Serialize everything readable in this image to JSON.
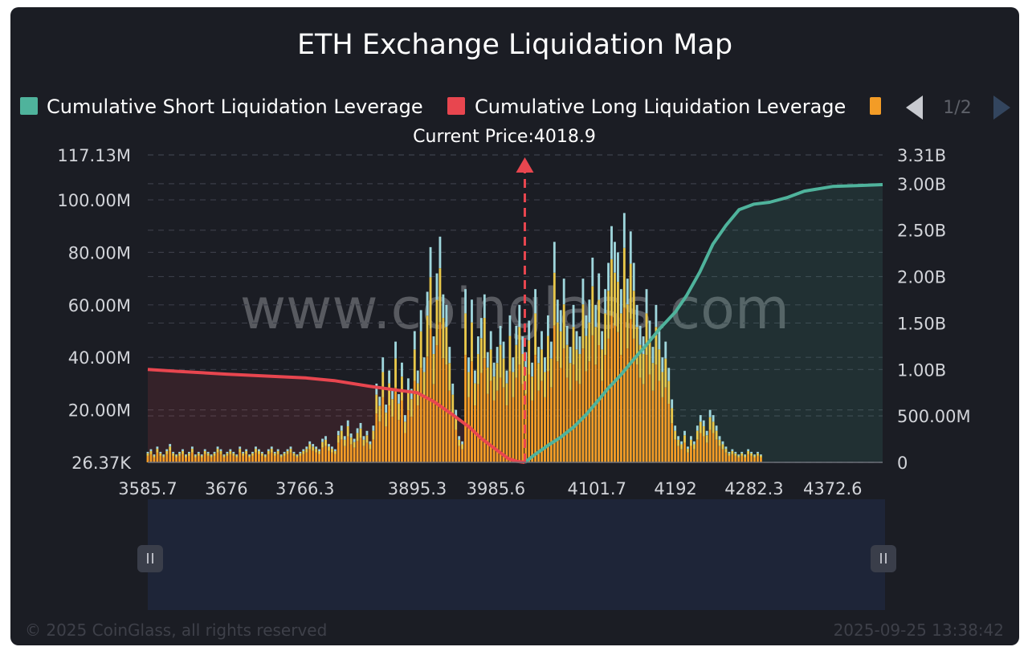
{
  "title": "ETH Exchange Liquidation Map",
  "legend": {
    "items": [
      {
        "label": "Cumulative Short Liquidation Leverage",
        "color": "#4fb39c"
      },
      {
        "label": "Cumulative Long Liquidation Leverage",
        "color": "#e8464f"
      },
      {
        "label": "",
        "color": "#f39c26"
      }
    ],
    "page": "1/2",
    "prev_icon": "triangle-left-icon",
    "next_icon": "triangle-right-icon"
  },
  "current_price_label": "Current Price:4018.9",
  "watermark": "www.coinglass.com",
  "footer": {
    "copyright": "© 2025 CoinGlass, all rights reserved",
    "timestamp": "2025-09-25 13:38:42"
  },
  "colors": {
    "short_line": "#4fb39c",
    "long_line": "#e8464f",
    "bar_orange": "#f39c26",
    "bar_yellow": "#e9c84a",
    "bar_cyan": "#9fd6dc",
    "price_marker": "#e8464f"
  },
  "chart_data": {
    "type": "bar",
    "title": "ETH Exchange Liquidation Map",
    "x_tick_labels": [
      "3585.7",
      "3676",
      "3766.3",
      "3895.3",
      "3985.6",
      "4101.7",
      "4192",
      "4282.3",
      "4372.6"
    ],
    "y_left_tick_labels": [
      "26.37K",
      "20.00M",
      "40.00M",
      "60.00M",
      "80.00M",
      "100.00M",
      "117.13M"
    ],
    "y_left_values": [
      0,
      20000000,
      40000000,
      60000000,
      80000000,
      100000000,
      117130000
    ],
    "y_right_tick_labels": [
      "0",
      "500.00M",
      "1.00B",
      "1.50B",
      "2.00B",
      "2.50B",
      "3.00B",
      "3.31B"
    ],
    "y_right_values": [
      0,
      500000000,
      1000000000,
      1500000000,
      2000000000,
      2500000000,
      3000000000,
      3310000000
    ],
    "ylim_left": [
      0,
      117130000
    ],
    "ylim_right": [
      0,
      3310000000
    ],
    "xlim": [
      3585.7,
      4430
    ],
    "current_price": 4018.9,
    "grid": "horizontal dashed",
    "legend_position": "top",
    "series": [
      {
        "name": "Cumulative Long Liquidation Leverage",
        "type": "area-line",
        "axis": "right",
        "x": [
          3585.7,
          3620,
          3676,
          3720,
          3766.3,
          3800,
          3840,
          3870,
          3895.3,
          3915,
          3935,
          3955,
          3970,
          3985.6,
          4000,
          4010,
          4018.9
        ],
        "values": [
          1000000000,
          980000000,
          950000000,
          930000000,
          910000000,
          880000000,
          820000000,
          780000000,
          750000000,
          650000000,
          520000000,
          380000000,
          250000000,
          140000000,
          40000000,
          10000000,
          0
        ]
      },
      {
        "name": "Cumulative Short Liquidation Leverage",
        "type": "area-line",
        "axis": "right",
        "x": [
          4018.9,
          4030,
          4045,
          4060,
          4075,
          4090,
          4101.7,
          4115,
          4130,
          4145,
          4160,
          4175,
          4192,
          4205,
          4220,
          4235,
          4250,
          4265,
          4282.3,
          4300,
          4320,
          4340,
          4372.6,
          4400,
          4430
        ],
        "values": [
          0,
          80000000,
          180000000,
          270000000,
          380000000,
          520000000,
          650000000,
          800000000,
          950000000,
          1120000000,
          1280000000,
          1450000000,
          1620000000,
          1800000000,
          2050000000,
          2350000000,
          2550000000,
          2720000000,
          2780000000,
          2800000000,
          2850000000,
          2920000000,
          2970000000,
          2980000000,
          2990000000
        ]
      },
      {
        "name": "",
        "type": "bar",
        "axis": "left",
        "x_start": 3585.7,
        "x_step": 3.65,
        "values": [
          4,
          5,
          3,
          6,
          4,
          3,
          5,
          7,
          4,
          3,
          4,
          5,
          3,
          4,
          6,
          3,
          4,
          3,
          5,
          4,
          3,
          4,
          6,
          5,
          3,
          4,
          5,
          4,
          3,
          6,
          4,
          5,
          3,
          4,
          6,
          5,
          4,
          3,
          5,
          6,
          4,
          5,
          3,
          4,
          5,
          6,
          4,
          3,
          4,
          5,
          6,
          8,
          7,
          6,
          5,
          9,
          10,
          7,
          6,
          5,
          12,
          14,
          10,
          16,
          11,
          9,
          13,
          15,
          10,
          12,
          8,
          14,
          30,
          25,
          40,
          22,
          35,
          28,
          46,
          26,
          38,
          18,
          32,
          28,
          50,
          35,
          58,
          40,
          65,
          82,
          48,
          72,
          86,
          64,
          60,
          44,
          30,
          20,
          10,
          8,
          66,
          40,
          62,
          35,
          48,
          55,
          64,
          42,
          50,
          38,
          44,
          52,
          46,
          35,
          56,
          40,
          52,
          60,
          48,
          42,
          54,
          38,
          66,
          44,
          50,
          40,
          56,
          46,
          84,
          62,
          58,
          70,
          52,
          44,
          60,
          50,
          48,
          70,
          56,
          62,
          78,
          60,
          72,
          50,
          66,
          76,
          90,
          84,
          80,
          66,
          95,
          70,
          88,
          76,
          60,
          52,
          48,
          66,
          54,
          44,
          60,
          50,
          40,
          46,
          36,
          24,
          14,
          10,
          8,
          12,
          6,
          10,
          8,
          14,
          18,
          16,
          12,
          20,
          18,
          14,
          10,
          8,
          6,
          4,
          5,
          4,
          3,
          4,
          3,
          5,
          4,
          3,
          4,
          3
        ],
        "unit": "millions"
      }
    ]
  }
}
